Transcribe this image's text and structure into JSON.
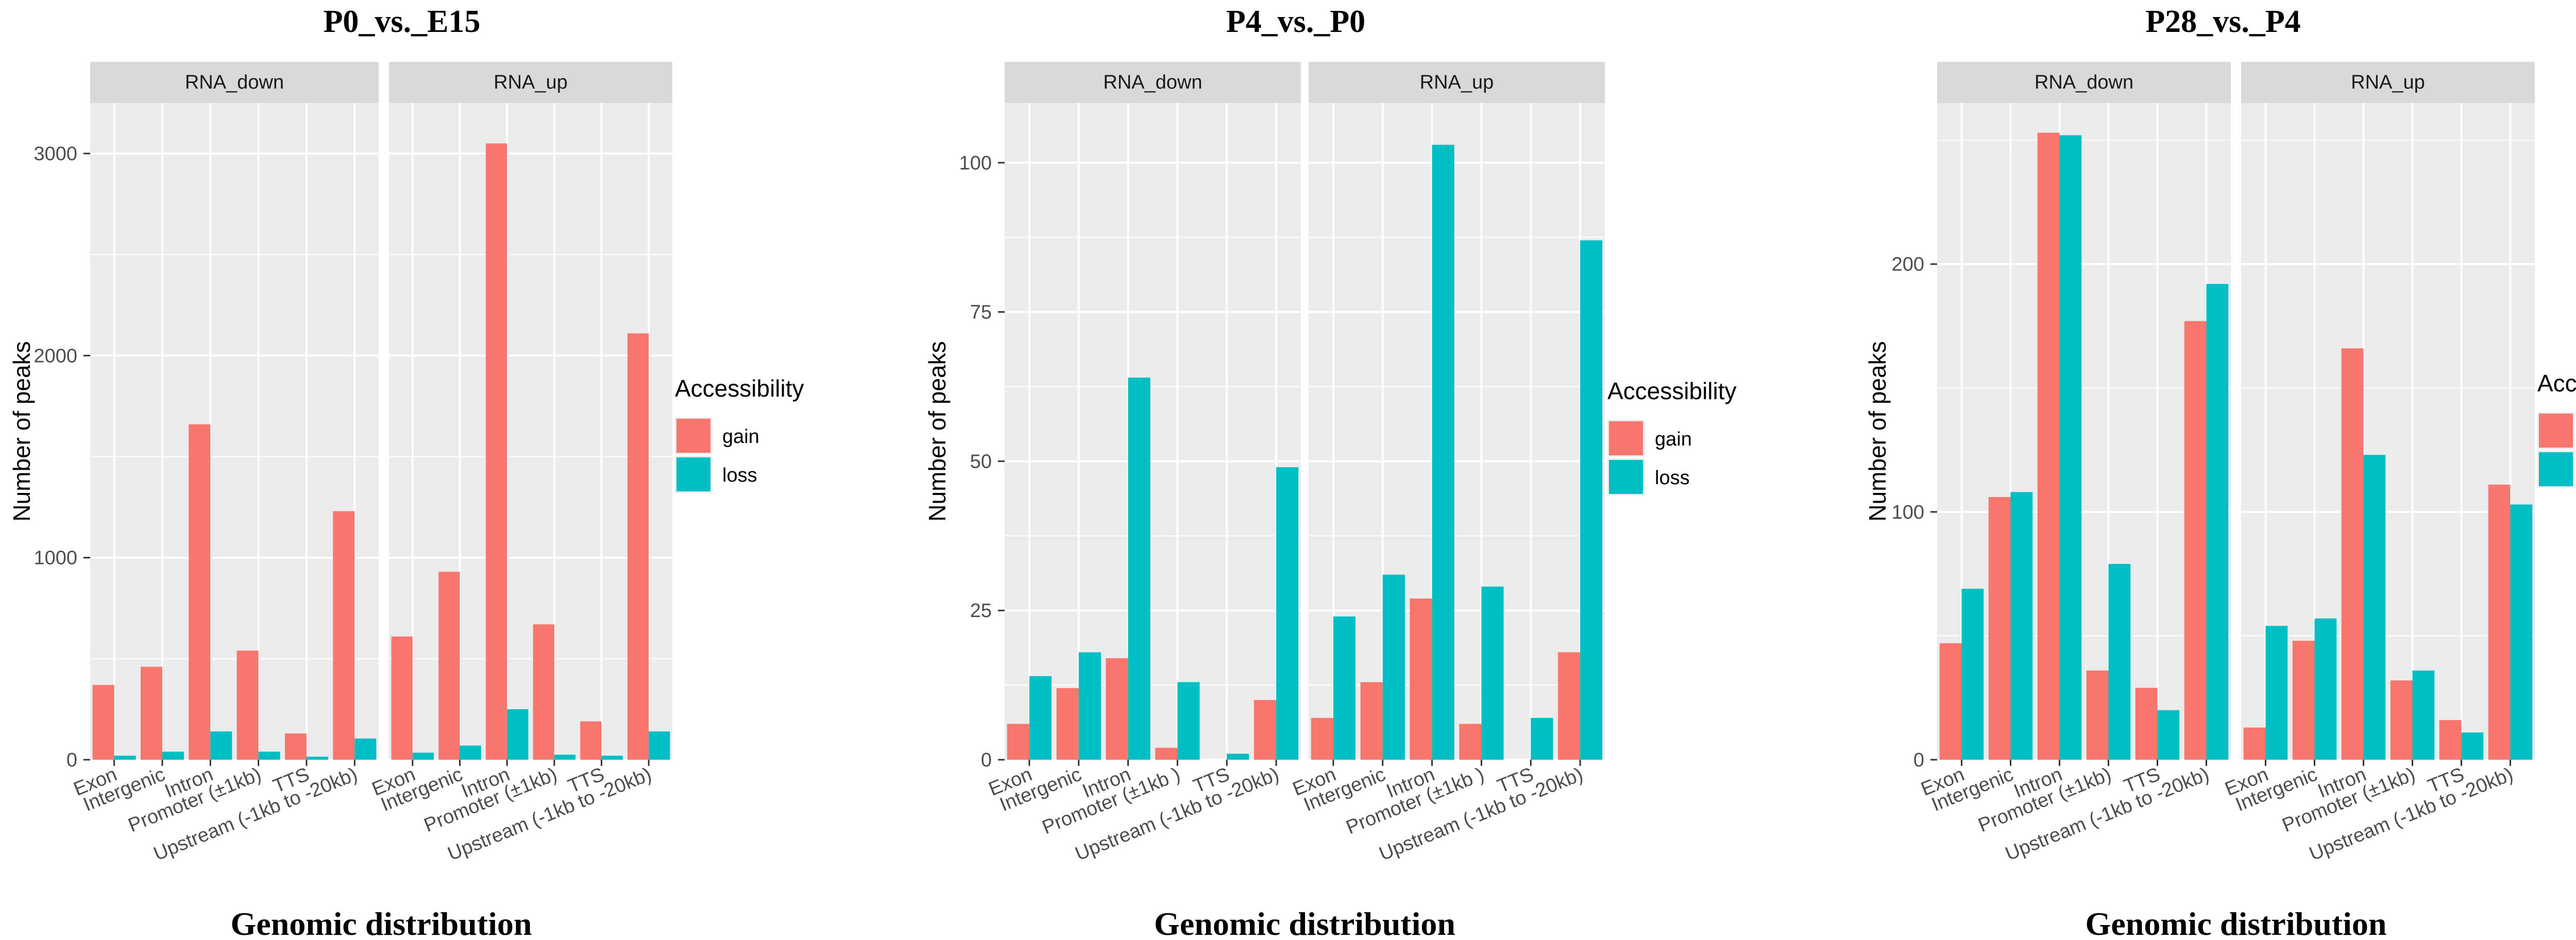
{
  "colors": {
    "gain": "#F8766D",
    "loss": "#00BFC4",
    "panel_bg": "#EBEBEB",
    "strip_bg": "#D9D9D9",
    "grid": "#FFFFFF"
  },
  "chart_data": [
    {
      "type": "bar",
      "title": "P0_vs._E15",
      "xlabel": "Genomic distribution",
      "ylabel": "Number of peaks",
      "legend_title": "Accessibility",
      "legend_position": "right",
      "ylim": [
        0,
        3250
      ],
      "yticks": [
        0,
        1000,
        2000,
        3000
      ],
      "categories": [
        "Exon",
        "Intergenic",
        "Intron",
        "Promoter (±1kb)",
        "TTS",
        "Upstream (-1kb to -20kb)"
      ],
      "facets": [
        {
          "name": "RNA_down",
          "series": [
            {
              "name": "gain",
              "values": [
                370,
                460,
                1660,
                540,
                130,
                1230
              ]
            },
            {
              "name": "loss",
              "values": [
                20,
                40,
                140,
                40,
                15,
                105
              ]
            }
          ]
        },
        {
          "name": "RNA_up",
          "series": [
            {
              "name": "gain",
              "values": [
                610,
                930,
                3050,
                670,
                190,
                2110
              ]
            },
            {
              "name": "loss",
              "values": [
                35,
                70,
                250,
                25,
                20,
                140
              ]
            }
          ]
        }
      ]
    },
    {
      "type": "bar",
      "title": "P4_vs._P0",
      "xlabel": "Genomic distribution",
      "ylabel": "Number of peaks",
      "legend_title": "Accessibility",
      "legend_position": "right",
      "ylim": [
        0,
        110
      ],
      "yticks": [
        0,
        25,
        50,
        75,
        100
      ],
      "categories": [
        "Exon",
        "Intergenic",
        "Intron",
        "Promoter (±1kb )",
        "TTS",
        "Upstream (-1kb to -20kb)"
      ],
      "facets": [
        {
          "name": "RNA_down",
          "series": [
            {
              "name": "gain",
              "values": [
                6,
                12,
                17,
                2,
                0,
                10
              ]
            },
            {
              "name": "loss",
              "values": [
                14,
                18,
                64,
                13,
                1,
                49
              ]
            }
          ]
        },
        {
          "name": "RNA_up",
          "series": [
            {
              "name": "gain",
              "values": [
                7,
                13,
                27,
                6,
                0,
                18
              ]
            },
            {
              "name": "loss",
              "values": [
                24,
                31,
                103,
                29,
                7,
                87
              ]
            }
          ]
        }
      ]
    },
    {
      "type": "bar",
      "title": "P28_vs._P4",
      "xlabel": "Genomic distribution",
      "ylabel": "Number of peaks",
      "legend_title": "Accessibility",
      "legend_position": "right",
      "ylim": [
        0,
        265
      ],
      "yticks": [
        0,
        100,
        200
      ],
      "categories": [
        "Exon",
        "Intergenic",
        "Intron",
        "Promoter (±1kb)",
        "TTS",
        "Upstream (-1kb to -20kb)"
      ],
      "facets": [
        {
          "name": "RNA_down",
          "series": [
            {
              "name": "gain",
              "values": [
                47,
                106,
                253,
                36,
                29,
                177
              ]
            },
            {
              "name": "loss",
              "values": [
                69,
                108,
                252,
                79,
                20,
                192
              ]
            }
          ]
        },
        {
          "name": "RNA_up",
          "series": [
            {
              "name": "gain",
              "values": [
                13,
                48,
                166,
                32,
                16,
                111
              ]
            },
            {
              "name": "loss",
              "values": [
                54,
                57,
                123,
                36,
                11,
                103
              ]
            }
          ]
        }
      ]
    }
  ]
}
